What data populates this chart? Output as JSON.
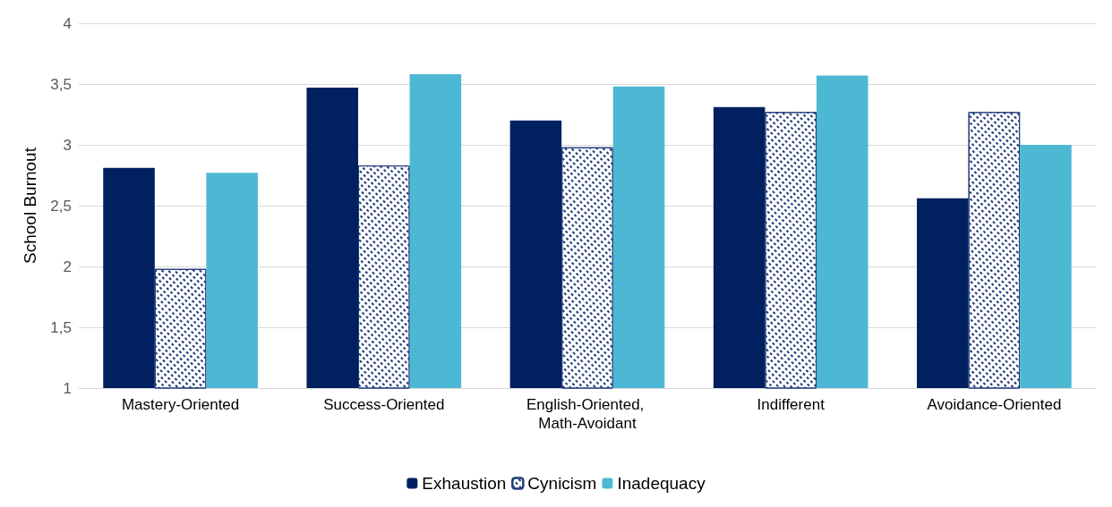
{
  "chart_data": {
    "type": "bar",
    "ylabel": "School Burnout",
    "categories": [
      "Mastery-Oriented",
      "Success-Oriented",
      "English-Oriented, Math-Avoidant",
      "Indifferent",
      "Avoidance-Oriented"
    ],
    "series": [
      {
        "name": "Exhaustion",
        "color": "#002060",
        "values": [
          2.81,
          3.47,
          3.2,
          3.31,
          2.56
        ]
      },
      {
        "name": "Cynicism",
        "color": "#1f3a7a",
        "values": [
          1.98,
          2.83,
          2.98,
          3.27,
          3.27
        ]
      },
      {
        "name": "Inadequacy",
        "color": "#4db8d4",
        "values": [
          2.77,
          3.58,
          3.48,
          3.57,
          3.0
        ]
      }
    ],
    "ylim": [
      1,
      4
    ],
    "yticks": [
      1,
      {
        "value": 1.5,
        "label": "1,5"
      },
      2,
      {
        "value": 2.5,
        "label": "2,5"
      },
      3,
      {
        "value": 3.5,
        "label": "3,5"
      },
      4
    ],
    "grid": "y",
    "legend": "bottom"
  }
}
